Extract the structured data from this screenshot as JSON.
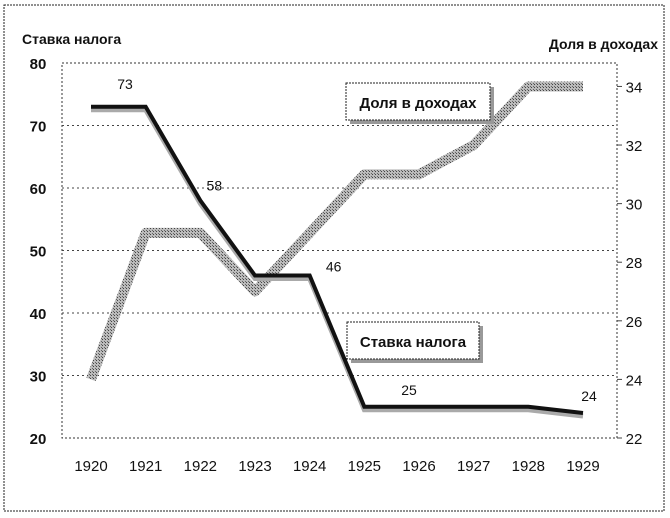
{
  "chart_data": {
    "type": "line",
    "title": "",
    "left_axis_title": "Ставка налога",
    "right_axis_title": "Доля  в доходах",
    "categories": [
      "1920",
      "1921",
      "1922",
      "1923",
      "1924",
      "1925",
      "1926",
      "1927",
      "1928",
      "1929"
    ],
    "left_ylim": [
      20,
      80
    ],
    "left_ticks": [
      "20",
      "30",
      "40",
      "50",
      "60",
      "70",
      "80"
    ],
    "right_ylim": [
      22,
      34.8
    ],
    "right_ticks": [
      "22",
      "24",
      "26",
      "28",
      "30",
      "32",
      "34"
    ],
    "grid": true,
    "series": [
      {
        "name": "Ставка налога",
        "axis": "left",
        "color": "#111111",
        "values": [
          73,
          73,
          58,
          46,
          46,
          25,
          25,
          25,
          25,
          24
        ],
        "data_labels": [
          {
            "index": 0,
            "text": "73"
          },
          {
            "index": 2,
            "text": "58"
          },
          {
            "index": 4,
            "text": "46"
          },
          {
            "index": 6,
            "text": "25"
          },
          {
            "index": 9,
            "text": "24"
          }
        ]
      },
      {
        "name": "Доля в доходах",
        "axis": "right",
        "color": "#9a9a9a",
        "values": [
          24,
          29,
          29,
          27,
          29,
          31,
          31,
          32,
          34,
          34
        ]
      }
    ],
    "legend_boxes": [
      "Доля в доходах",
      "Ставка налога"
    ]
  }
}
